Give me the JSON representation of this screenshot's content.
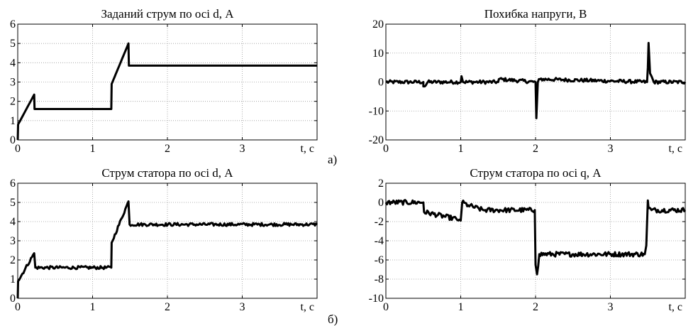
{
  "subfigure_labels": [
    "а)",
    "б)"
  ],
  "chart_data": [
    {
      "type": "line",
      "title": "Заданий струм по осі d, А",
      "xlabel": "t, c",
      "ylabel": "",
      "xlim": [
        0,
        4
      ],
      "ylim": [
        0,
        6
      ],
      "xticks": [
        "0",
        "1",
        "2",
        "3"
      ],
      "yticks": [
        "0",
        "1",
        "2",
        "3",
        "4",
        "5",
        "6"
      ],
      "grid": true,
      "series": [
        {
          "x": [
            0,
            0.005,
            0.22,
            0.225,
            1.25,
            1.255,
            1.48,
            1.485,
            4.0
          ],
          "y": [
            0,
            0.8,
            2.35,
            1.6,
            1.6,
            2.9,
            5.0,
            3.85,
            3.85
          ],
          "noise": 0
        }
      ]
    },
    {
      "type": "line",
      "title": "Похибка напруги, В",
      "xlabel": "t, c",
      "ylabel": "",
      "xlim": [
        0,
        4
      ],
      "ylim": [
        -20,
        20
      ],
      "xticks": [
        "0",
        "1",
        "2",
        "3"
      ],
      "yticks": [
        "-20",
        "-10",
        "0",
        "10",
        "20"
      ],
      "grid": true,
      "series": [
        {
          "x": [
            0,
            0.5,
            0.5,
            0.52,
            0.56,
            1.0,
            1.01,
            1.03,
            1.5,
            1.51,
            2.0,
            2.01,
            2.03,
            2.06,
            3.49,
            3.5,
            3.51,
            3.53,
            3.58,
            4.0
          ],
          "y": [
            0,
            0,
            -1.5,
            -1.5,
            0,
            0,
            2,
            0,
            0,
            1,
            0,
            -12.5,
            0,
            1,
            0,
            5,
            13.5,
            3,
            0,
            0
          ],
          "noise": 0.6
        }
      ]
    },
    {
      "type": "line",
      "title": "Струм статора по осі d, А",
      "xlabel": "t, c",
      "ylabel": "",
      "xlim": [
        0,
        4
      ],
      "ylim": [
        0,
        6
      ],
      "xticks": [
        "0",
        "1",
        "2",
        "3"
      ],
      "yticks": [
        "0",
        "1",
        "2",
        "3",
        "4",
        "5",
        "6"
      ],
      "grid": true,
      "series": [
        {
          "x": [
            0,
            0.005,
            0.22,
            0.235,
            1.25,
            1.255,
            1.48,
            1.495,
            4.0
          ],
          "y": [
            0,
            0.9,
            2.35,
            1.6,
            1.6,
            2.9,
            5.05,
            3.85,
            3.85
          ],
          "noise": 0.08
        }
      ]
    },
    {
      "type": "line",
      "title": "Струм статора по осі q, А",
      "xlabel": "t, c",
      "ylabel": "",
      "xlim": [
        0,
        4
      ],
      "ylim": [
        -10,
        2
      ],
      "xticks": [
        "0",
        "1",
        "2",
        "3"
      ],
      "yticks": [
        "-10",
        "-8",
        "-6",
        "-4",
        "-2",
        "0",
        "2"
      ],
      "grid": true,
      "series": [
        {
          "x": [
            0,
            0.5,
            0.51,
            0.98,
            1.0,
            1.02,
            1.1,
            1.3,
            1.99,
            2.0,
            2.02,
            2.05,
            3.46,
            3.48,
            3.5,
            3.51,
            3.55,
            4.0
          ],
          "y": [
            0,
            0,
            -1.0,
            -1.8,
            -1.9,
            0,
            -0.3,
            -0.8,
            -0.8,
            -6.5,
            -7.5,
            -5.4,
            -5.4,
            -4.5,
            0.2,
            -0.6,
            -0.8,
            -0.8
          ],
          "noise": 0.25
        }
      ]
    }
  ]
}
